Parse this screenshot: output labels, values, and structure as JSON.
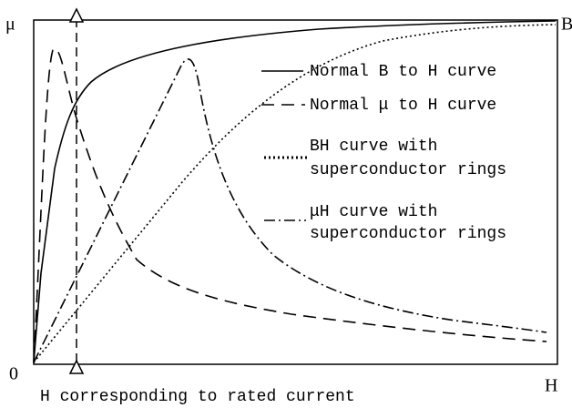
{
  "axes": {
    "y_left_label": "μ",
    "y_right_label": "B",
    "origin_label": "0",
    "x_label": "H",
    "marker_label": "H corresponding to rated current"
  },
  "legend": [
    {
      "lines": [
        "Normal B to H curve"
      ]
    },
    {
      "lines": [
        "Normal μ to H curve"
      ]
    },
    {
      "lines": [
        "BH curve with",
        "superconductor rings"
      ]
    },
    {
      "lines": [
        "μH curve with",
        "superconductor rings"
      ]
    }
  ]
}
